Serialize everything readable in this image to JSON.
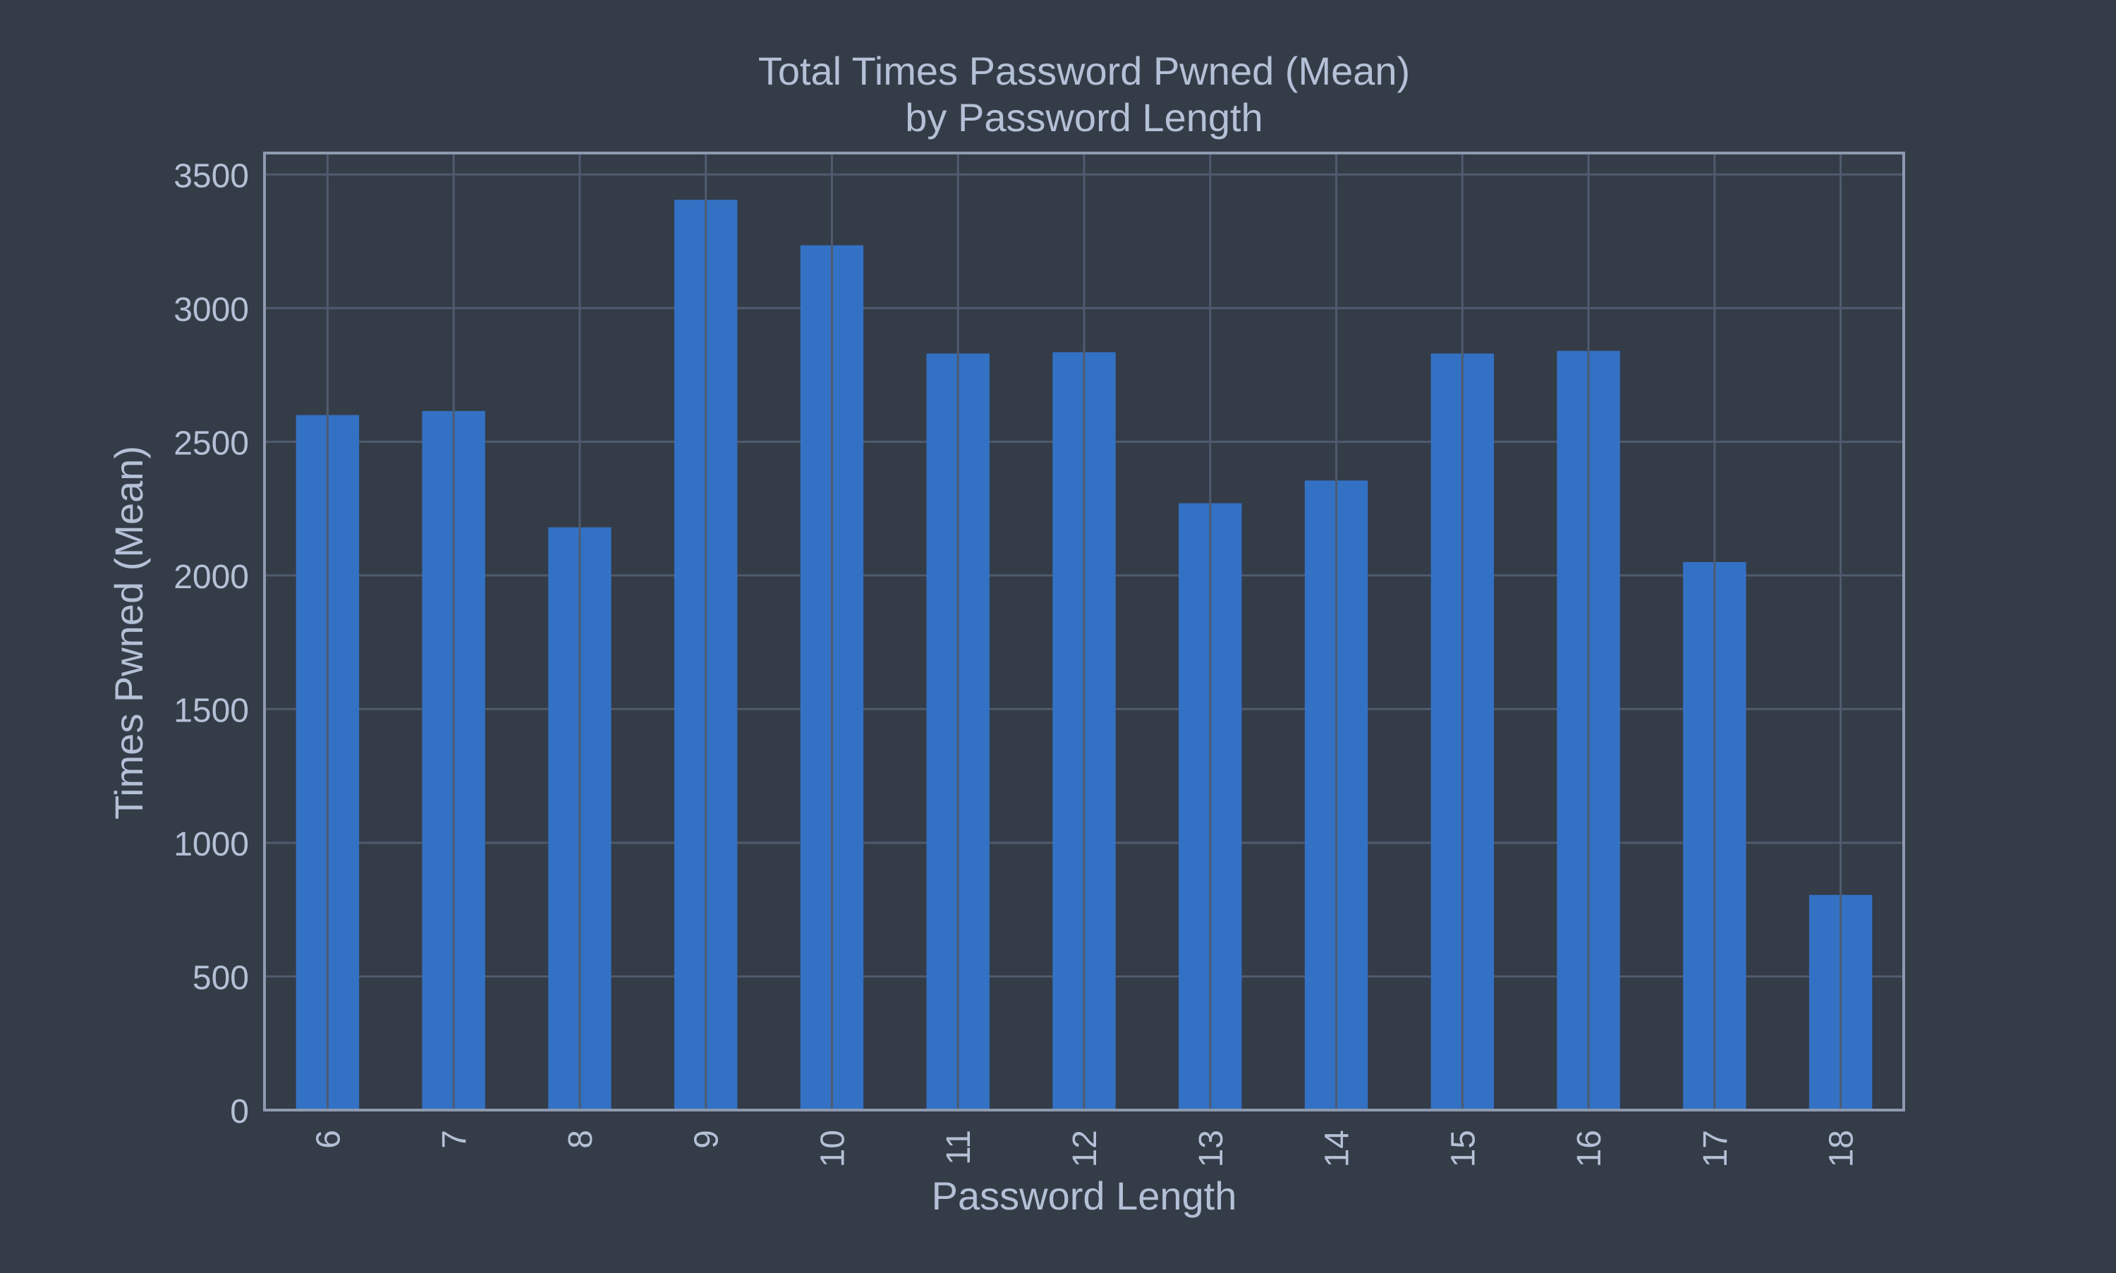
{
  "colors": {
    "background": "#343c48",
    "bar": "#3371c4",
    "grid": "#4f5b6e",
    "axis": "#8d9ab0",
    "text": "#b4c0d6"
  },
  "chart_data": {
    "type": "bar",
    "title": [
      "Total Times Password Pwned (Mean)",
      "by Password Length"
    ],
    "xlabel": "Password Length",
    "ylabel": "Times Pwned (Mean)",
    "categories": [
      "6",
      "7",
      "8",
      "9",
      "10",
      "11",
      "12",
      "13",
      "14",
      "15",
      "16",
      "17",
      "18"
    ],
    "values": [
      2600,
      2615,
      2180,
      3405,
      3235,
      2830,
      2835,
      2270,
      2355,
      2830,
      2840,
      2050,
      805
    ],
    "ylim": [
      0,
      3580
    ],
    "yticks": [
      0,
      500,
      1000,
      1500,
      2000,
      2500,
      3000,
      3500
    ],
    "xtick_rotation": "vertical",
    "grid": true,
    "legend": "none"
  }
}
